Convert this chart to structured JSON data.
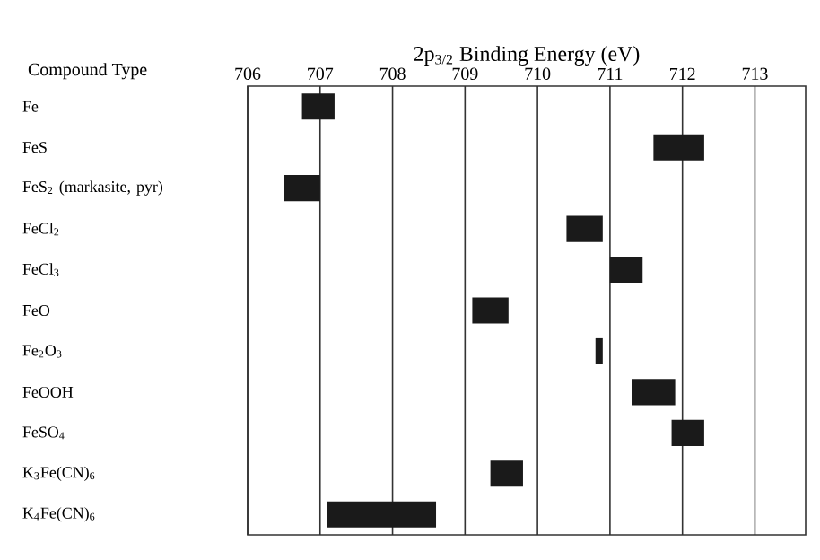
{
  "chart_data": {
    "type": "bar",
    "orientation": "horizontal",
    "title": "2p$_{3/2}$ Binding Energy (eV)",
    "ylabel": "Compound Type",
    "categories": [
      "Fe",
      "FeS",
      "FeS$_{2}$ (markasite, pyr)",
      "FeCl$_{2}$",
      "FeCl$_{3}$",
      "FeO",
      "Fe$_{2}$O$_{3}$",
      "FeOOH",
      "FeSO$_{4}$",
      "K$_{3}$Fe(CN)$_{6}$",
      "K$_{4}$Fe(CN)$_{6}$"
    ],
    "base": [
      706.75,
      711.6,
      706.5,
      710.4,
      711.0,
      709.1,
      710.8,
      711.3,
      711.85,
      709.35,
      707.1
    ],
    "values": [
      0.45,
      0.7,
      0.5,
      0.5,
      0.45,
      0.5,
      0.1,
      0.6,
      0.45,
      0.45,
      1.5
    ],
    "color": "#1a1a1a",
    "xlim": [
      706,
      713.7
    ],
    "xticks": [
      706,
      707,
      708,
      709,
      710,
      711,
      712,
      713
    ],
    "grid": "x"
  }
}
